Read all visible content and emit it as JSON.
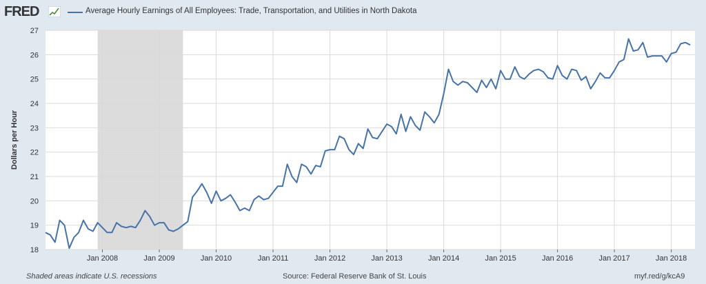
{
  "header": {
    "logo_text": "FRED",
    "title": "Average Hourly Earnings of All Employees: Trade, Transportation, and Utilities in North Dakota"
  },
  "footer": {
    "note": "Shaded areas indicate U.S. recessions",
    "source": "Source: Federal Reserve Bank of St. Louis",
    "link": "myf.red/g/kcA9"
  },
  "colors": {
    "line": "#4572a7",
    "recession": "#dcdcdc",
    "plot_bg": "#ffffff",
    "grid": "#d9d9d9"
  },
  "chart_data": {
    "type": "line",
    "title": "Average Hourly Earnings of All Employees: Trade, Transportation, and Utilities in North Dakota",
    "ylabel": "Dollars per Hour",
    "xlabel": "",
    "ylim": [
      18,
      27
    ],
    "yticks": [
      "18",
      "19",
      "20",
      "21",
      "22",
      "23",
      "24",
      "25",
      "26",
      "27"
    ],
    "xticks": [
      {
        "date": "2008-01",
        "label": "Jan 2008"
      },
      {
        "date": "2009-01",
        "label": "Jan 2009"
      },
      {
        "date": "2010-01",
        "label": "Jan 2010"
      },
      {
        "date": "2011-01",
        "label": "Jan 2011"
      },
      {
        "date": "2012-01",
        "label": "Jan 2012"
      },
      {
        "date": "2013-01",
        "label": "Jan 2013"
      },
      {
        "date": "2014-01",
        "label": "Jan 2014"
      },
      {
        "date": "2015-01",
        "label": "Jan 2015"
      },
      {
        "date": "2016-01",
        "label": "Jan 2016"
      },
      {
        "date": "2017-01",
        "label": "Jan 2017"
      },
      {
        "date": "2018-01",
        "label": "Jan 2018"
      }
    ],
    "x_range": [
      "2007-01",
      "2018-06"
    ],
    "recession": {
      "start": "2007-12",
      "end": "2009-06"
    },
    "grid": true,
    "series": [
      {
        "start": "2007-01",
        "values": [
          18.7,
          18.6,
          18.3,
          19.2,
          19.0,
          18.05,
          18.5,
          18.7,
          19.2,
          18.85,
          18.75,
          19.1,
          18.9,
          18.7,
          18.7,
          19.1,
          18.95,
          18.9,
          18.95,
          18.9,
          19.2,
          19.6,
          19.35,
          19.0,
          19.1,
          19.1,
          18.8,
          18.75,
          18.85,
          19.0,
          19.15,
          20.15,
          20.4,
          20.7,
          20.35,
          19.9,
          20.4,
          20.0,
          20.1,
          20.25,
          19.95,
          19.6,
          19.7,
          19.6,
          20.05,
          20.2,
          20.05,
          20.1,
          20.35,
          20.6,
          20.6,
          21.5,
          21.0,
          20.75,
          21.5,
          21.4,
          21.1,
          21.45,
          21.4,
          22.05,
          22.1,
          22.1,
          22.65,
          22.55,
          22.1,
          21.9,
          22.35,
          22.15,
          22.95,
          22.6,
          22.55,
          22.85,
          23.15,
          23.05,
          22.75,
          23.55,
          22.85,
          23.45,
          23.1,
          22.9,
          23.65,
          23.45,
          23.2,
          23.55,
          24.4,
          25.4,
          24.9,
          24.75,
          24.9,
          24.85,
          24.65,
          24.45,
          24.95,
          24.65,
          25.0,
          24.6,
          25.35,
          25.0,
          25.0,
          25.5,
          25.1,
          25.0,
          25.2,
          25.35,
          25.4,
          25.3,
          25.05,
          25.0,
          25.55,
          25.15,
          25.0,
          25.4,
          25.35,
          24.95,
          25.1,
          24.6,
          24.9,
          25.25,
          25.05,
          25.05,
          25.35,
          25.7,
          25.8,
          26.65,
          26.15,
          26.2,
          26.5,
          25.9,
          25.95,
          25.95,
          25.95,
          25.7,
          26.05,
          26.1,
          26.45,
          26.5,
          26.4
        ]
      }
    ]
  }
}
